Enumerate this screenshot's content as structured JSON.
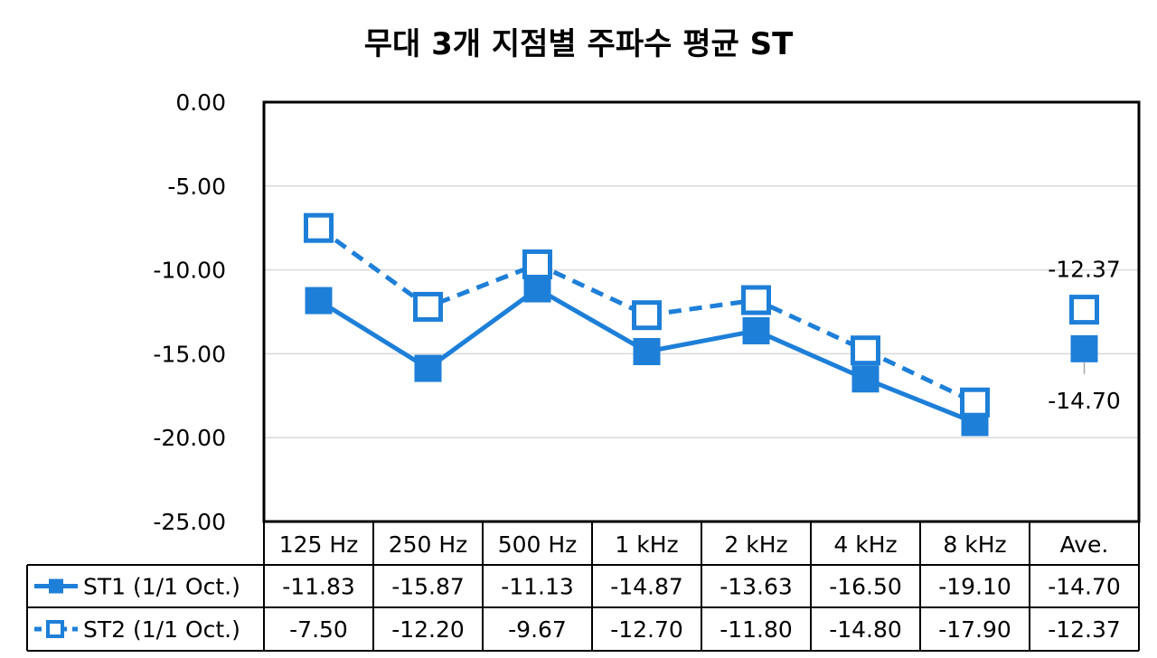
{
  "chart_data": {
    "type": "line",
    "title": "무대 3개 지점별 주파수 평균 ST",
    "categories": [
      "125 Hz",
      "250 Hz",
      "500 Hz",
      "1 kHz",
      "2 kHz",
      "4 kHz",
      "8 kHz",
      "Ave."
    ],
    "series": [
      {
        "name": "ST1 (1/1 Oct.)",
        "values": [
          -11.83,
          -15.87,
          -11.13,
          -14.87,
          -13.63,
          -16.5,
          -19.1,
          -14.7
        ],
        "table_values": [
          "-11.83",
          "-15.87",
          "-11.13",
          "-14.87",
          "-13.63",
          "-16.50",
          "-19.10",
          "-14.70"
        ],
        "line_style": "solid",
        "marker": "filled-square",
        "color": "#1E7FD8"
      },
      {
        "name": "ST2 (1/1 Oct.)",
        "values": [
          -7.5,
          -12.2,
          -9.67,
          -12.7,
          -11.8,
          -14.8,
          -17.9,
          -12.37
        ],
        "table_values": [
          "-7.50",
          "-12.20",
          "-9.67",
          "-12.70",
          "-11.80",
          "-14.80",
          "-17.90",
          "-12.37"
        ],
        "line_style": "dashed",
        "marker": "hollow-square",
        "color": "#1E7FD8"
      }
    ],
    "ylim": [
      -25,
      0
    ],
    "yticks": [
      "0.00",
      "-5.00",
      "-10.00",
      "-15.00",
      "-20.00",
      "-25.00"
    ],
    "ytick_values": [
      0,
      -5,
      -10,
      -15,
      -20,
      -25
    ],
    "grid": true,
    "data_labels": [
      {
        "series": 1,
        "category": "Ave.",
        "text": "-12.37"
      },
      {
        "series": 0,
        "category": "Ave.",
        "text": "-14.70"
      }
    ],
    "data_table": true,
    "legend": "in data table"
  }
}
